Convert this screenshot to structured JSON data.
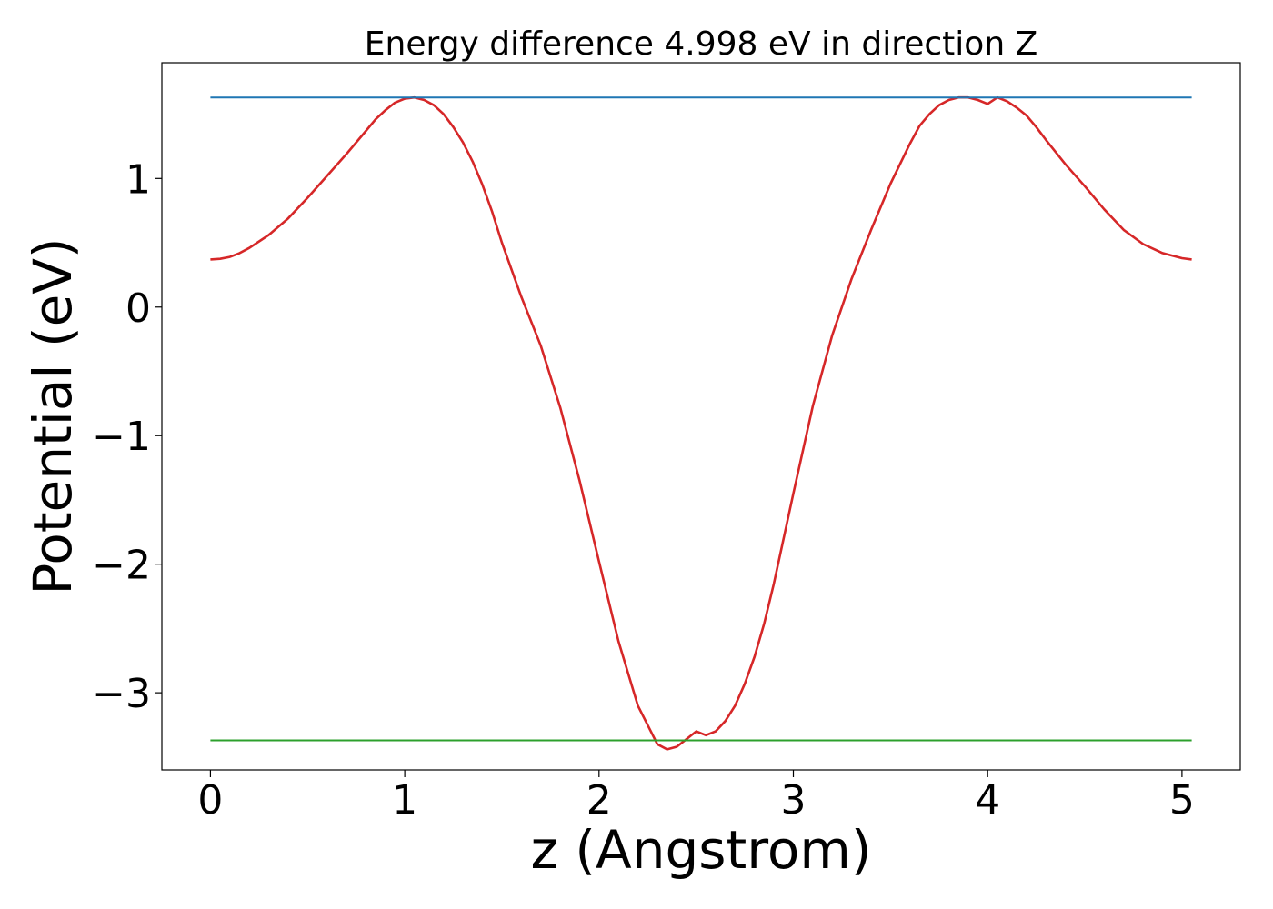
{
  "chart_data": {
    "type": "line",
    "title": "Energy difference 4.998 eV in direction Z",
    "xlabel": "z (Angstrom)",
    "ylabel": "Potential (eV)",
    "xlim": [
      -0.25,
      5.3
    ],
    "ylim": [
      -3.6,
      1.9
    ],
    "x_ticks": [
      0,
      1,
      2,
      3,
      4,
      5
    ],
    "x_tick_labels": [
      "0",
      "1",
      "2",
      "3",
      "4",
      "5"
    ],
    "y_ticks": [
      -3,
      -2,
      -1,
      0,
      1
    ],
    "y_tick_labels": [
      "−3",
      "−2",
      "−1",
      "0",
      "1"
    ],
    "grid": false,
    "series": [
      {
        "color": "#d62728",
        "x": [
          0,
          0.05,
          0.1,
          0.15,
          0.2,
          0.3,
          0.4,
          0.5,
          0.6,
          0.7,
          0.8,
          0.85,
          0.9,
          0.95,
          1.0,
          1.05,
          1.1,
          1.15,
          1.2,
          1.25,
          1.3,
          1.35,
          1.4,
          1.45,
          1.5,
          1.6,
          1.7,
          1.8,
          1.9,
          2.0,
          2.1,
          2.2,
          2.3,
          2.35,
          2.4,
          2.45,
          2.5,
          2.55,
          2.6,
          2.65,
          2.7,
          2.75,
          2.8,
          2.85,
          2.9,
          3.0,
          3.1,
          3.2,
          3.3,
          3.4,
          3.5,
          3.6,
          3.65,
          3.7,
          3.75,
          3.8,
          3.85,
          3.9,
          3.95,
          4.0,
          4.05,
          4.1,
          4.15,
          4.2,
          4.25,
          4.3,
          4.4,
          4.5,
          4.6,
          4.7,
          4.8,
          4.9,
          5.0,
          5.05
        ],
        "y": [
          0.37,
          0.375,
          0.39,
          0.42,
          0.46,
          0.56,
          0.69,
          0.85,
          1.02,
          1.19,
          1.37,
          1.46,
          1.53,
          1.59,
          1.62,
          1.63,
          1.61,
          1.57,
          1.5,
          1.4,
          1.28,
          1.13,
          0.95,
          0.74,
          0.5,
          0.08,
          -0.3,
          -0.78,
          -1.35,
          -1.98,
          -2.6,
          -3.1,
          -3.4,
          -3.44,
          -3.42,
          -3.36,
          -3.3,
          -3.33,
          -3.3,
          -3.22,
          -3.1,
          -2.93,
          -2.72,
          -2.46,
          -2.15,
          -1.45,
          -0.77,
          -0.22,
          0.22,
          0.6,
          0.96,
          1.27,
          1.41,
          1.5,
          1.57,
          1.61,
          1.63,
          1.63,
          1.61,
          1.58,
          1.63,
          1.6,
          1.55,
          1.49,
          1.4,
          1.3,
          1.11,
          0.94,
          0.76,
          0.6,
          0.49,
          0.42,
          0.38,
          0.37
        ]
      },
      {
        "color": "#1f77b4",
        "x": [
          0,
          5.05
        ],
        "y": [
          1.63,
          1.63
        ]
      },
      {
        "color": "#2ca02c",
        "x": [
          0,
          5.05
        ],
        "y": [
          -3.37,
          -3.37
        ]
      }
    ]
  }
}
